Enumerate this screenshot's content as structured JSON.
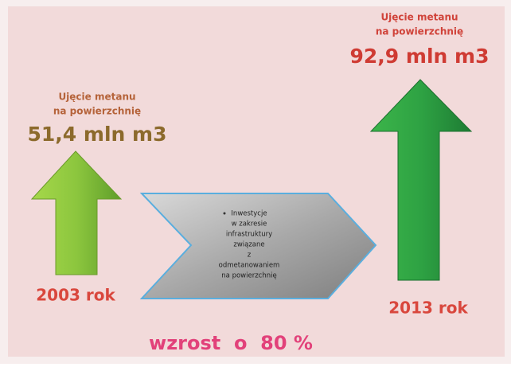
{
  "left": {
    "heading": [
      "Ujęcie metanu",
      "na powierzchnię"
    ],
    "amount": "51,4 mln m3",
    "year": "2003 rok"
  },
  "middle": {
    "lines": [
      "Inwestycje",
      "w zakresie",
      "infrastruktury",
      "związane",
      "z",
      "odmetanowaniem",
      "na powierzchnię"
    ]
  },
  "right": {
    "heading": [
      "Ujęcie metanu",
      "na powierzchnię"
    ],
    "amount": "92,9 mln m3",
    "year": "2013 rok"
  },
  "footer": "wzrost  o  80 %"
}
